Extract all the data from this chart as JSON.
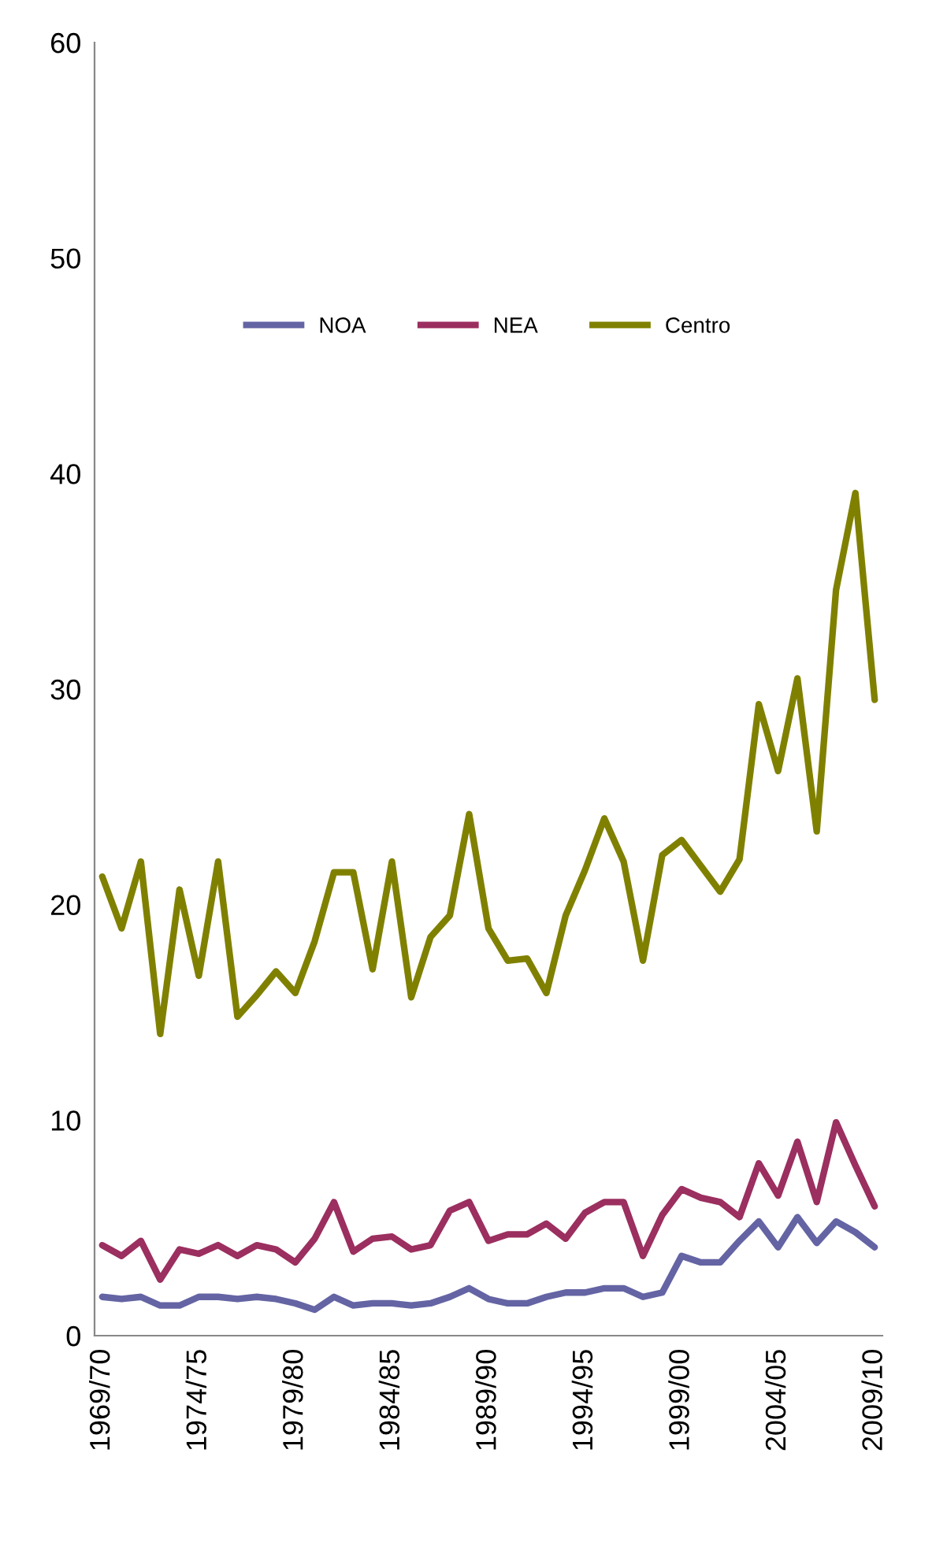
{
  "chart_data": {
    "type": "line",
    "categories": [
      "1969/70",
      null,
      null,
      null,
      null,
      "1974/75",
      null,
      null,
      null,
      null,
      "1979/80",
      null,
      null,
      null,
      null,
      "1984/85",
      null,
      null,
      null,
      null,
      "1989/90",
      null,
      null,
      null,
      null,
      "1994/95",
      null,
      null,
      null,
      null,
      "1999/00",
      null,
      null,
      null,
      null,
      "2004/05",
      null,
      null,
      null,
      null,
      "2009/10"
    ],
    "series": [
      {
        "name": "NOA",
        "color": "#6464a4",
        "values": [
          1.8,
          1.7,
          1.8,
          1.4,
          1.4,
          1.8,
          1.8,
          1.7,
          1.8,
          1.7,
          1.5,
          1.2,
          1.8,
          1.4,
          1.5,
          1.5,
          1.4,
          1.5,
          1.8,
          2.2,
          1.7,
          1.5,
          1.5,
          1.8,
          2.0,
          2.0,
          2.2,
          2.2,
          1.8,
          2.0,
          3.7,
          3.4,
          3.4,
          4.4,
          5.3,
          4.1,
          5.5,
          4.3,
          5.3,
          4.8,
          4.1
        ]
      },
      {
        "name": "NEA",
        "color": "#9b2f5f",
        "values": [
          4.2,
          3.7,
          4.4,
          2.6,
          4.0,
          3.8,
          4.2,
          3.7,
          4.2,
          4.0,
          3.4,
          4.5,
          6.2,
          3.9,
          4.5,
          4.6,
          4.0,
          4.2,
          5.8,
          6.2,
          4.4,
          4.7,
          4.7,
          5.2,
          4.5,
          5.7,
          6.2,
          6.2,
          3.7,
          5.6,
          6.8,
          6.4,
          6.2,
          5.5,
          8.0,
          6.5,
          9.0,
          6.2,
          9.9,
          7.9,
          6.0
        ]
      },
      {
        "name": "Centro",
        "color": "#808000",
        "values": [
          21.3,
          18.9,
          22.0,
          14.0,
          20.7,
          16.7,
          22.0,
          14.8,
          15.8,
          16.9,
          15.9,
          18.3,
          21.5,
          21.5,
          17.0,
          22.0,
          15.7,
          18.5,
          19.5,
          24.2,
          18.9,
          17.4,
          17.5,
          15.9,
          19.5,
          21.6,
          24.0,
          22.0,
          17.4,
          22.3,
          23.0,
          21.8,
          20.6,
          22.1,
          29.3,
          26.2,
          30.5,
          23.4,
          34.6,
          39.1,
          29.5
        ]
      }
    ],
    "ylim": [
      0,
      60
    ],
    "yticks": [
      0,
      10,
      20,
      30,
      40,
      50,
      60
    ],
    "grid": false,
    "legend": "top",
    "marker": "none",
    "line_style": "solid"
  }
}
